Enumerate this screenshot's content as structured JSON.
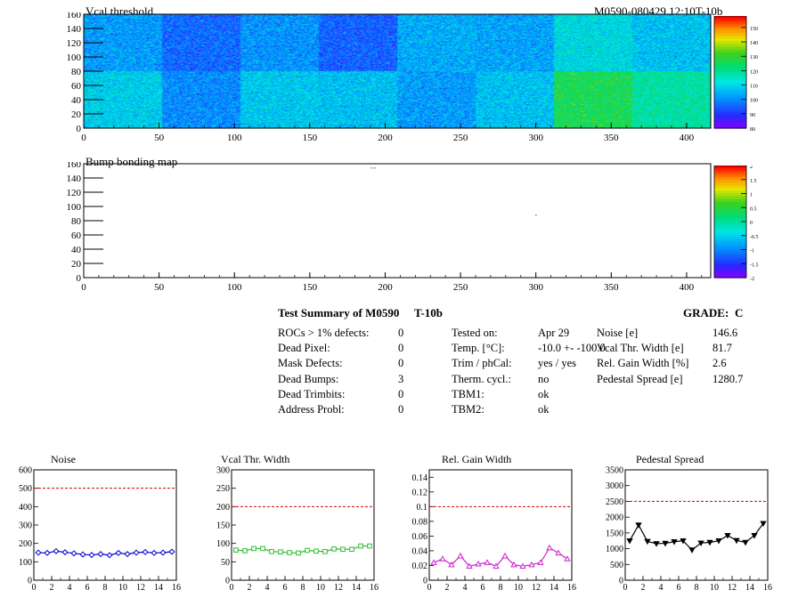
{
  "maps": [
    {
      "title": "Vcal threshold",
      "id_label": "M0590-080429.12:10T-10b",
      "x_ticks": [
        0,
        50,
        100,
        150,
        200,
        250,
        300,
        350,
        400
      ],
      "y_ticks": [
        0,
        20,
        40,
        60,
        80,
        100,
        120,
        140,
        160
      ],
      "palette_ticks": [
        80,
        90,
        100,
        110,
        120,
        130,
        140,
        150
      ],
      "palette_range": [
        80,
        158
      ],
      "roc_mean_levels": {
        "top": [
          103,
          97,
          102,
          96,
          105,
          104,
          112,
          108,
          109
        ],
        "bottom": [
          110,
          101,
          109,
          108,
          103,
          108,
          127,
          119,
          104
        ]
      }
    },
    {
      "title": "Bump bonding map",
      "id_label": "",
      "x_ticks": [
        0,
        50,
        100,
        150,
        200,
        250,
        300,
        350,
        400
      ],
      "y_ticks": [
        0,
        20,
        40,
        60,
        80,
        100,
        120,
        140,
        160
      ],
      "palette_ticks": [
        "-2",
        "-1.5",
        "-1",
        "-0.5",
        "0",
        "0.5",
        "1",
        "1.5",
        "2"
      ],
      "palette_range": [
        -2,
        2
      ],
      "dead_bumps": [
        [
          191,
          154
        ],
        [
          193,
          154
        ],
        [
          300,
          88
        ]
      ]
    }
  ],
  "summary": {
    "title": "Test Summary of M0590",
    "test": "T-10b",
    "grade_label": "GRADE:",
    "grade": "C",
    "left_rows": [
      {
        "label": "ROCs > 1% defects:",
        "value": "0"
      },
      {
        "label": "Dead Pixel:",
        "value": "0"
      },
      {
        "label": "Mask Defects:",
        "value": "0"
      },
      {
        "label": "Dead Bumps:",
        "value": "3"
      },
      {
        "label": "Dead Trimbits:",
        "value": "0"
      },
      {
        "label": "Address Probl:",
        "value": "0"
      }
    ],
    "mid_rows": [
      {
        "label": "Tested on:",
        "value": "Apr 29"
      },
      {
        "label": "Temp. [°C]:",
        "value": "-10.0 +- -100.0"
      },
      {
        "label": "Trim / phCal:",
        "value": "yes / yes"
      },
      {
        "label": "Therm. cycl.:",
        "value": "no"
      },
      {
        "label": "TBM1:",
        "value": "ok"
      },
      {
        "label": "TBM2:",
        "value": "ok"
      }
    ],
    "right_rows": [
      {
        "label": "Noise [e]",
        "value": "146.6"
      },
      {
        "label": "Vcal Thr. Width [e]",
        "value": "81.7"
      },
      {
        "label": "Rel. Gain Width [%]",
        "value": "2.6"
      },
      {
        "label": "Pedestal Spread [e]",
        "value": "1280.7"
      }
    ]
  },
  "chart_data": [
    {
      "type": "line",
      "title": "Noise",
      "x": [
        0,
        1,
        2,
        3,
        4,
        5,
        6,
        7,
        8,
        9,
        10,
        11,
        12,
        13,
        14,
        15
      ],
      "values": [
        150,
        148,
        158,
        152,
        146,
        140,
        137,
        142,
        136,
        148,
        142,
        150,
        153,
        148,
        150,
        155
      ],
      "xlim": [
        0,
        16
      ],
      "ylim": [
        0,
        600
      ],
      "x_ticks": [
        0,
        2,
        4,
        6,
        8,
        10,
        12,
        14,
        16
      ],
      "y_ticks": [
        0,
        100,
        200,
        300,
        400,
        500,
        600
      ],
      "threshold": 500,
      "color": "#0000cc",
      "marker": "diamond-open"
    },
    {
      "type": "line",
      "title": "Vcal Thr. Width",
      "x": [
        0,
        1,
        2,
        3,
        4,
        5,
        6,
        7,
        8,
        9,
        10,
        11,
        12,
        13,
        14,
        15
      ],
      "values": [
        82,
        80,
        86,
        86,
        78,
        77,
        75,
        74,
        81,
        79,
        78,
        85,
        84,
        84,
        93,
        93
      ],
      "xlim": [
        0,
        16
      ],
      "ylim": [
        0,
        300
      ],
      "x_ticks": [
        0,
        2,
        4,
        6,
        8,
        10,
        12,
        14,
        16
      ],
      "y_ticks": [
        0,
        50,
        100,
        150,
        200,
        250,
        300
      ],
      "threshold": 200,
      "color": "#33bb33",
      "marker": "square-open"
    },
    {
      "type": "line",
      "title": "Rel. Gain Width",
      "x": [
        0,
        1,
        2,
        3,
        4,
        5,
        6,
        7,
        8,
        9,
        10,
        11,
        12,
        13,
        14,
        15
      ],
      "values": [
        0.024,
        0.029,
        0.021,
        0.033,
        0.019,
        0.022,
        0.024,
        0.019,
        0.033,
        0.021,
        0.019,
        0.021,
        0.024,
        0.044,
        0.037,
        0.029
      ],
      "xlim": [
        0,
        16
      ],
      "ylim": [
        0,
        0.15
      ],
      "x_ticks": [
        0,
        2,
        4,
        6,
        8,
        10,
        12,
        14,
        16
      ],
      "y_ticks": [
        0,
        0.02,
        0.04,
        0.06,
        0.08,
        0.1,
        0.12,
        0.14
      ],
      "threshold": 0.1,
      "color": "#cc22cc",
      "marker": "triangle-open"
    },
    {
      "type": "line",
      "title": "Pedestal Spread",
      "x": [
        0,
        1,
        2,
        3,
        4,
        5,
        6,
        7,
        8,
        9,
        10,
        11,
        12,
        13,
        14,
        15
      ],
      "values": [
        1250,
        1750,
        1230,
        1160,
        1170,
        1220,
        1250,
        960,
        1180,
        1200,
        1250,
        1420,
        1260,
        1200,
        1420,
        1800
      ],
      "xlim": [
        0,
        16
      ],
      "ylim": [
        0,
        3500
      ],
      "x_ticks": [
        0,
        2,
        4,
        6,
        8,
        10,
        12,
        14,
        16
      ],
      "y_ticks": [
        0,
        500,
        1000,
        1500,
        2000,
        2500,
        3000,
        3500
      ],
      "threshold": 2500,
      "color": "#000000",
      "marker": "triangle-down-filled"
    }
  ]
}
